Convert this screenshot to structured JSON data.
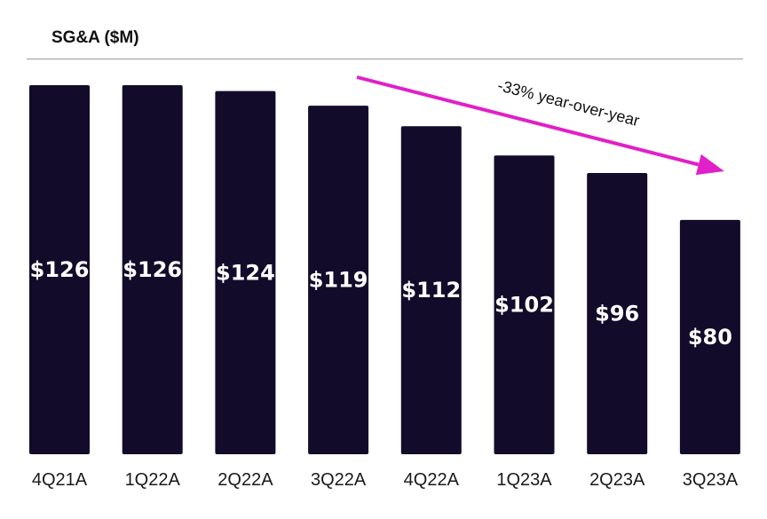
{
  "chart_data": {
    "type": "bar",
    "title": "SG&A ($M)",
    "categories": [
      "4Q21A",
      "1Q22A",
      "2Q22A",
      "3Q22A",
      "4Q22A",
      "1Q23A",
      "2Q23A",
      "3Q23A"
    ],
    "values": [
      126,
      126,
      124,
      119,
      112,
      102,
      96,
      80
    ],
    "data_labels": [
      "$126",
      "$126",
      "$124",
      "$119",
      "$112",
      "$102",
      "$96",
      "$80"
    ],
    "ylim": [
      0,
      126
    ],
    "grid": false,
    "annotation": {
      "text": "-33% year-over-year",
      "from_category": "3Q22A",
      "to_category": "3Q23A"
    },
    "colors": {
      "bar": "#130b2a",
      "arrow": "#e020c8",
      "bar_label": "#ffffff"
    }
  }
}
